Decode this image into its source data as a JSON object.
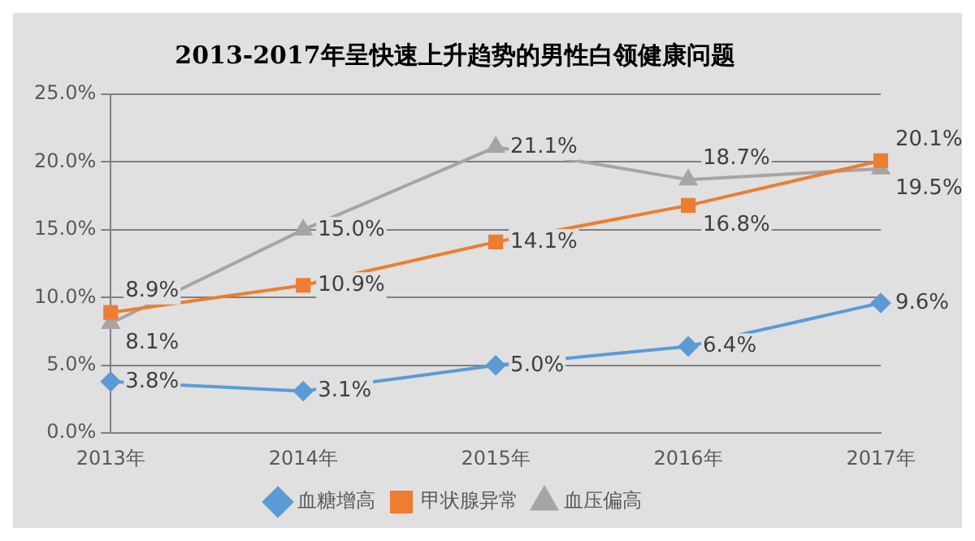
{
  "chart_data": {
    "type": "line",
    "title": "2013-2017年呈快速上升趋势的男性白领健康问题",
    "categories": [
      "2013年",
      "2014年",
      "2015年",
      "2016年",
      "2017年"
    ],
    "series": [
      {
        "name": "血糖增高",
        "color": "#5b9bd5",
        "marker": "diamond",
        "values": [
          3.8,
          3.1,
          5.0,
          6.4,
          9.6
        ],
        "value_labels": [
          "3.8%",
          "3.1%",
          "5.0%",
          "6.4%",
          "9.6%"
        ]
      },
      {
        "name": "甲状腺异常",
        "color": "#ed7d31",
        "marker": "square",
        "values": [
          8.9,
          10.9,
          14.1,
          16.8,
          20.1
        ],
        "value_labels": [
          "8.9%",
          "10.9%",
          "14.1%",
          "16.8%",
          "20.1%"
        ]
      },
      {
        "name": "血压偏高",
        "color": "#a5a5a5",
        "marker": "triangle",
        "values": [
          8.1,
          15.0,
          21.1,
          18.7,
          19.5
        ],
        "value_labels": [
          "8.1%",
          "15.0%",
          "21.1%",
          "18.7%",
          "19.5%"
        ]
      }
    ],
    "ylim": [
      0,
      25
    ],
    "yticks": [
      {
        "value": 0,
        "label": "0.0%"
      },
      {
        "value": 5,
        "label": "5.0%"
      },
      {
        "value": 10,
        "label": "10.0%"
      },
      {
        "value": 15,
        "label": "15.0%"
      },
      {
        "value": 20,
        "label": "20.0%"
      },
      {
        "value": 25,
        "label": "25.0%"
      }
    ],
    "grid": "y",
    "legend": "bottom",
    "line_style": "solid"
  }
}
